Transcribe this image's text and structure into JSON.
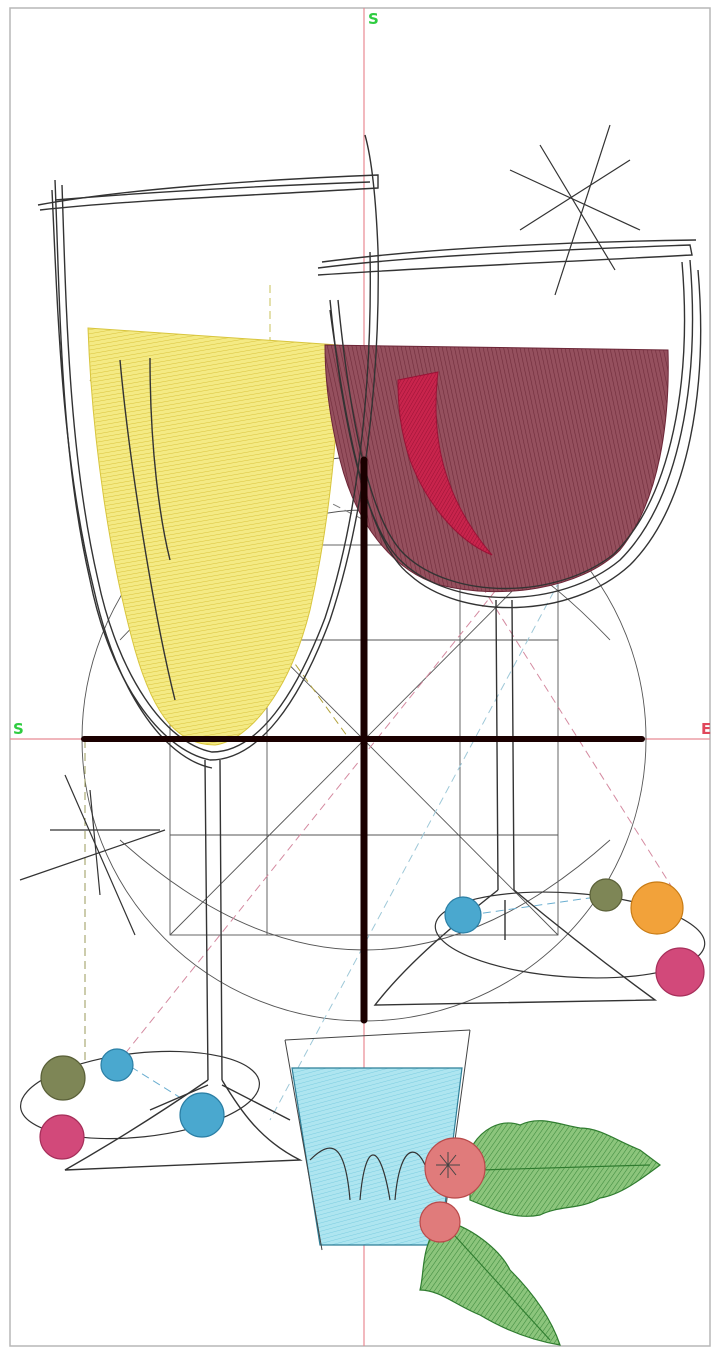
{
  "axis_labels": {
    "top": "S",
    "left": "S",
    "right": "E"
  },
  "colors": {
    "background": "#ffffff",
    "hoop_border": "#b7b7b7",
    "axis_line": "#e88a93",
    "label_green": "#2ecc40",
    "label_red": "#e0475b",
    "crosshair": "#1a0000",
    "outline": "#333333",
    "wireframe": "#555555",
    "champagne_fill": "#f1e46a",
    "wine_fill": "#8c4150",
    "wine_highlight": "#c21d48",
    "water_fill": "#9fe0ee",
    "holly_leaf": "#78b86b",
    "holly_leaf_dark": "#2f7c2f",
    "berry_red": "#d96a6a",
    "bead_blue": "#4aa8cf",
    "bead_olive": "#7e8656",
    "bead_orange": "#f2a23a",
    "bead_pink": "#d2497a"
  },
  "icons": {
    "sparkle_top": "asterisk-sparkle-icon",
    "sparkle_left": "asterisk-sparkle-icon"
  }
}
